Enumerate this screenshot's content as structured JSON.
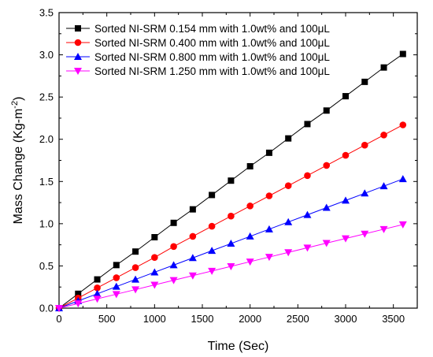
{
  "chart_data": {
    "type": "line",
    "title": "",
    "xlabel": "Time (Sec)",
    "ylabel_main": "Mass Change (Kg-m",
    "ylabel_sup": "-2",
    "ylabel_close": ")",
    "xlim": [
      0,
      3750
    ],
    "ylim": [
      0,
      3.5
    ],
    "xticks": [
      0,
      500,
      1000,
      1500,
      2000,
      2500,
      3000,
      3500
    ],
    "xtick_labels": [
      "0",
      "500",
      "1000",
      "1500",
      "2000",
      "2500",
      "3000",
      "3500"
    ],
    "yticks": [
      0.0,
      0.5,
      1.0,
      1.5,
      2.0,
      2.5,
      3.0,
      3.5
    ],
    "ytick_labels": [
      "0.0",
      "0.5",
      "1.0",
      "1.5",
      "2.0",
      "2.5",
      "3.0",
      "3.5"
    ],
    "grid": false,
    "legend_position": "top-left",
    "x": [
      0,
      200,
      400,
      600,
      800,
      1000,
      1200,
      1400,
      1600,
      1800,
      2000,
      2200,
      2400,
      2600,
      2800,
      3000,
      3200,
      3400,
      3600
    ],
    "series": [
      {
        "name": "Sorted NI-SRM 0.154 mm with 1.0wt% and 100μL",
        "color": "#000000",
        "marker": "square",
        "values": [
          0,
          0.17,
          0.34,
          0.51,
          0.67,
          0.84,
          1.01,
          1.17,
          1.34,
          1.51,
          1.68,
          1.84,
          2.01,
          2.18,
          2.34,
          2.51,
          2.68,
          2.85,
          3.01
        ]
      },
      {
        "name": "Sorted NI-SRM 0.400 mm with 1.0wt% and 100μL",
        "color": "#ff0000",
        "marker": "circle",
        "values": [
          0,
          0.12,
          0.24,
          0.36,
          0.48,
          0.6,
          0.73,
          0.85,
          0.97,
          1.09,
          1.21,
          1.33,
          1.45,
          1.57,
          1.69,
          1.81,
          1.93,
          2.05,
          2.17
        ]
      },
      {
        "name": "Sorted NI-SRM 0.800 mm with 1.0wt% and 100μL",
        "color": "#0000ff",
        "marker": "triangle-up",
        "values": [
          0,
          0.085,
          0.17,
          0.255,
          0.34,
          0.425,
          0.51,
          0.595,
          0.68,
          0.765,
          0.85,
          0.935,
          1.02,
          1.105,
          1.19,
          1.275,
          1.36,
          1.445,
          1.53
        ]
      },
      {
        "name": "Sorted NI-SRM 1.250 mm with 1.0wt% and 100μL",
        "color": "#ff00ff",
        "marker": "triangle-down",
        "values": [
          0,
          0.055,
          0.11,
          0.165,
          0.22,
          0.275,
          0.33,
          0.385,
          0.44,
          0.495,
          0.55,
          0.605,
          0.66,
          0.715,
          0.77,
          0.825,
          0.88,
          0.935,
          0.99
        ]
      }
    ]
  }
}
